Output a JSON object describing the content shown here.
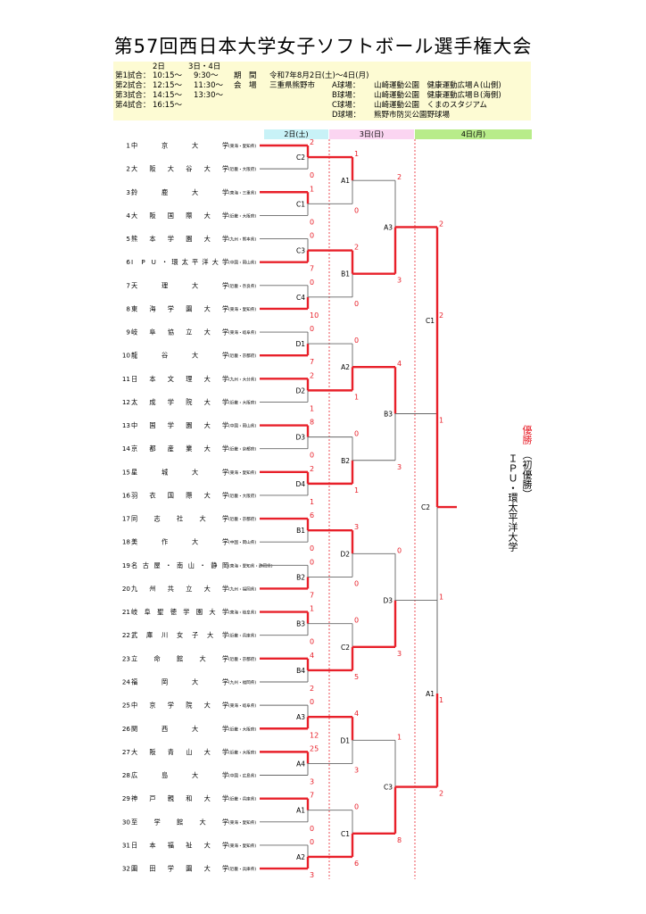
{
  "title": "第57回西日本大学女子ソフトボール選手権大会",
  "schedule": {
    "col_day2": "2日",
    "col_day34": "3日・4日",
    "rows": [
      {
        "label": "第1試合：",
        "d2": "10:15～",
        "d34": "9:30～"
      },
      {
        "label": "第2試合：",
        "d2": "12:15～",
        "d34": "11:30～"
      },
      {
        "label": "第3試合：",
        "d2": "14:15～",
        "d34": "13:30～"
      },
      {
        "label": "第4試合：",
        "d2": "16:15～",
        "d34": ""
      }
    ]
  },
  "period": {
    "label": "期　間",
    "value": "令和7年8月2日(土)～4日(月)"
  },
  "venue": {
    "label": "会　場",
    "value": "三重県熊野市"
  },
  "fields": [
    {
      "label": "A球場：",
      "value": "山崎運動公園　健康運動広場Ａ(山側)"
    },
    {
      "label": "B球場：",
      "value": "山崎運動公園　健康運動広場Ｂ(海側)"
    },
    {
      "label": "C球場：",
      "value": "山崎運動公園　くまのスタジアム"
    },
    {
      "label": "D球場：",
      "value": "熊野市防災公園野球場"
    }
  ],
  "days": [
    {
      "label": "2日(土)",
      "color": "#c8f2f7"
    },
    {
      "label": "3日(日)",
      "color": "#fbd5f1"
    },
    {
      "label": "4日(月)",
      "color": "#b8ec8a"
    }
  ],
  "colors": {
    "winner_line": "#e8202a",
    "loser_line": "#666666",
    "score": "#e8202a",
    "day_divider": "#e8202a"
  },
  "teams": [
    {
      "no": "1",
      "name": "中京大学",
      "region": "(東海・愛知県)"
    },
    {
      "no": "2",
      "name": "大阪大谷大学",
      "region": "(近畿・大阪府)"
    },
    {
      "no": "3",
      "name": "鈴鹿大学",
      "region": "(東海・三重県)"
    },
    {
      "no": "4",
      "name": "大阪国際大学",
      "region": "(近畿・大阪府)"
    },
    {
      "no": "5",
      "name": "熊本学園大学",
      "region": "(九州・熊本県)"
    },
    {
      "no": "6",
      "name": "IPU・環太平洋大学",
      "region": "(中国・岡山県)"
    },
    {
      "no": "7",
      "name": "天理大学",
      "region": "(近畿・奈良県)"
    },
    {
      "no": "8",
      "name": "東海学園大学",
      "region": "(東海・愛知県)"
    },
    {
      "no": "9",
      "name": "岐阜協立大学",
      "region": "(東海・岐阜県)"
    },
    {
      "no": "10",
      "name": "龍谷大学",
      "region": "(近畿・京都府)"
    },
    {
      "no": "11",
      "name": "日本文理大学",
      "region": "(九州・大分県)"
    },
    {
      "no": "12",
      "name": "太成学院大学",
      "region": "(近畿・大阪府)"
    },
    {
      "no": "13",
      "name": "中国学園大学",
      "region": "(中国・岡山県)"
    },
    {
      "no": "14",
      "name": "京都産業大学",
      "region": "(近畿・京都府)"
    },
    {
      "no": "15",
      "name": "星城大学",
      "region": "(東海・愛知県)"
    },
    {
      "no": "16",
      "name": "羽衣国際大学",
      "region": "(近畿・大阪府)"
    },
    {
      "no": "17",
      "name": "同志社大学",
      "region": "(近畿・京都府)"
    },
    {
      "no": "18",
      "name": "美作大学",
      "region": "(中国・岡山県)"
    },
    {
      "no": "19",
      "name": "名古屋・南山・静岡",
      "region": "(東海・愛知県・静岡県)"
    },
    {
      "no": "20",
      "name": "九州共立大学",
      "region": "(九州・福岡県)"
    },
    {
      "no": "21",
      "name": "岐阜聖徳学園大学",
      "region": "(東海・岐阜県)"
    },
    {
      "no": "22",
      "name": "武庫川女子大学",
      "region": "(近畿・兵庫県)"
    },
    {
      "no": "23",
      "name": "立命館大学",
      "region": "(近畿・京都府)"
    },
    {
      "no": "24",
      "name": "福岡大学",
      "region": "(九州・福岡県)"
    },
    {
      "no": "25",
      "name": "中京学院大学",
      "region": "(東海・岐阜県)"
    },
    {
      "no": "26",
      "name": "関西大学",
      "region": "(近畿・大阪府)"
    },
    {
      "no": "27",
      "name": "大阪青山大学",
      "region": "(近畿・大阪府)"
    },
    {
      "no": "28",
      "name": "広島大学",
      "region": "(中国・広島県)"
    },
    {
      "no": "29",
      "name": "神戸親和大学",
      "region": "(近畿・兵庫県)"
    },
    {
      "no": "30",
      "name": "至学館大学",
      "region": "(東海・愛知県)"
    },
    {
      "no": "31",
      "name": "日本福祉大学",
      "region": "(東海・愛知県)"
    },
    {
      "no": "32",
      "name": "園田学園大学",
      "region": "(近畿・兵庫県)"
    }
  ],
  "round1": [
    {
      "label": "C2",
      "scores": [
        "2",
        "0"
      ],
      "winner": 0
    },
    {
      "label": "C1",
      "scores": [
        "1",
        "0"
      ],
      "winner": 0
    },
    {
      "label": "C3",
      "scores": [
        "0",
        "7"
      ],
      "winner": 1
    },
    {
      "label": "C4",
      "scores": [
        "0",
        "10"
      ],
      "winner": 1
    },
    {
      "label": "D1",
      "scores": [
        "0",
        "7"
      ],
      "winner": 1
    },
    {
      "label": "D2",
      "scores": [
        "2",
        "1"
      ],
      "winner": 0
    },
    {
      "label": "D3",
      "scores": [
        "8",
        "0"
      ],
      "winner": 0
    },
    {
      "label": "D4",
      "scores": [
        "2",
        "1"
      ],
      "winner": 0
    },
    {
      "label": "B1",
      "scores": [
        "6",
        "0"
      ],
      "winner": 0
    },
    {
      "label": "B2",
      "scores": [
        "0",
        "7"
      ],
      "winner": 1
    },
    {
      "label": "B3",
      "scores": [
        "1",
        "0"
      ],
      "winner": 0
    },
    {
      "label": "B4",
      "scores": [
        "4",
        "2"
      ],
      "winner": 0
    },
    {
      "label": "A3",
      "scores": [
        "0",
        "12"
      ],
      "winner": 1
    },
    {
      "label": "A4",
      "scores": [
        "25",
        "3"
      ],
      "winner": 0
    },
    {
      "label": "A1",
      "scores": [
        "7",
        "0"
      ],
      "winner": 0
    },
    {
      "label": "A2",
      "scores": [
        "0",
        "3"
      ],
      "winner": 1
    }
  ],
  "round2": [
    {
      "label": "A1",
      "scores": [
        "1",
        "0"
      ],
      "winner": 0
    },
    {
      "label": "B1",
      "scores": [
        "2",
        "0"
      ],
      "winner": 0
    },
    {
      "label": "A2",
      "scores": [
        "0",
        "1"
      ],
      "winner": 1
    },
    {
      "label": "B2",
      "scores": [
        "0",
        "1"
      ],
      "winner": 1
    },
    {
      "label": "D2",
      "scores": [
        "3",
        "0"
      ],
      "winner": 0
    },
    {
      "label": "C2",
      "scores": [
        "0",
        "5"
      ],
      "winner": 1
    },
    {
      "label": "D1",
      "scores": [
        "4",
        "3"
      ],
      "winner": 0
    },
    {
      "label": "C1",
      "scores": [
        "0",
        "6"
      ],
      "winner": 1
    }
  ],
  "round3": [
    {
      "label": "A3",
      "scores": [
        "2",
        "3"
      ],
      "winner": 1
    },
    {
      "label": "B3",
      "scores": [
        "4",
        "3"
      ],
      "winner": 0
    },
    {
      "label": "D3",
      "scores": [
        "0",
        "3"
      ],
      "winner": 1
    },
    {
      "label": "C3",
      "scores": [
        "1",
        "8"
      ],
      "winner": 1
    }
  ],
  "round4": [
    {
      "label": "C1",
      "scores": [
        "2",
        "1"
      ],
      "winner": 0
    },
    {
      "label": "A1",
      "scores": [
        "1",
        "2"
      ],
      "winner": 1
    }
  ],
  "final": {
    "label": "C2",
    "scores": [
      "2",
      "1"
    ],
    "winner": 0
  },
  "champion": {
    "caption": "優勝",
    "name": "ＩＰＵ・環太平洋大学",
    "note": "（初優勝）"
  }
}
